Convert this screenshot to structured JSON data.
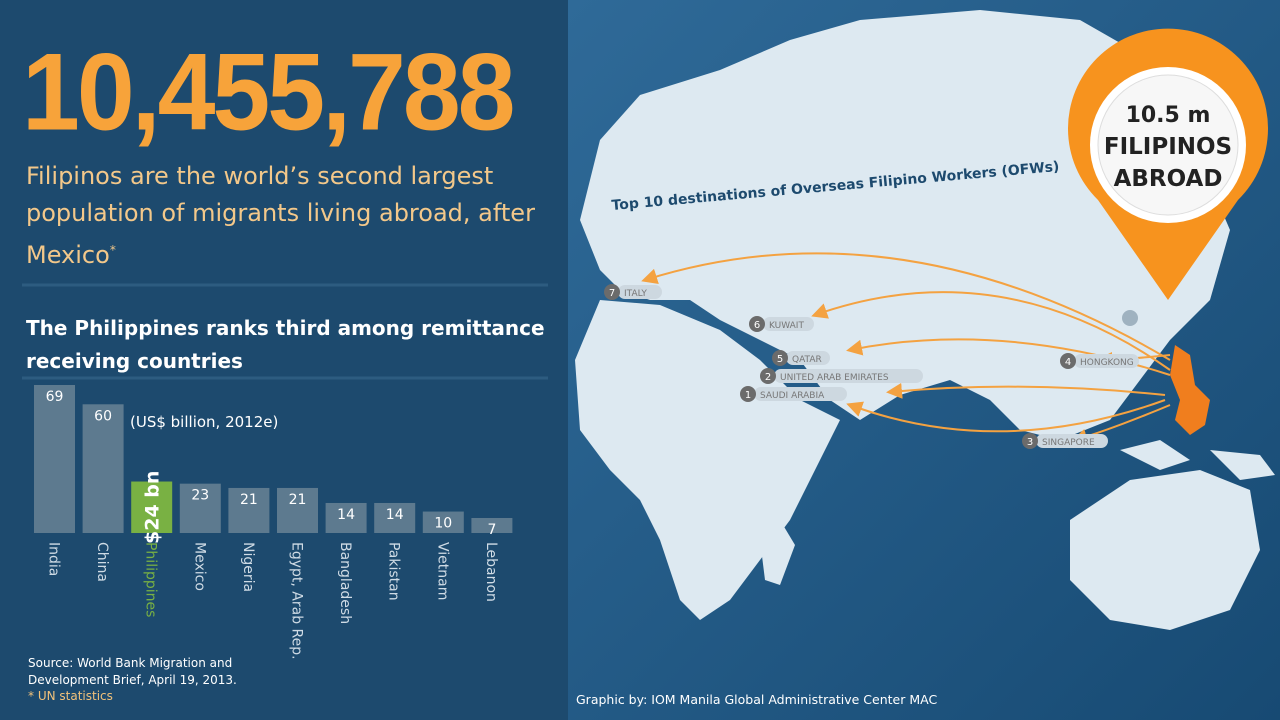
{
  "headline": "10,455,788",
  "subtitle": "Filipinos are the world’s second largest population of migrants living abroad, after Mexico",
  "subtitle_mark": "*",
  "source": "Source: World Bank Migration and Development Brief, April 19, 2013.",
  "footnote": "* UN statistics",
  "credit": "Graphic by: IOM Manila Global Administrative Center MAC",
  "pin": {
    "lines": [
      "10.5 m",
      "FILIPINOS",
      "ABROAD"
    ]
  },
  "map": {
    "title": "Top 10 destinations of Overseas Filipino Workers (OFWs)",
    "destinations": [
      {
        "rank": 7,
        "name": "ITALY"
      },
      {
        "rank": 6,
        "name": "KUWAIT"
      },
      {
        "rank": 5,
        "name": "QATAR"
      },
      {
        "rank": 2,
        "name": "UNITED ARAB EMIRATES"
      },
      {
        "rank": 1,
        "name": "SAUDI ARABIA"
      },
      {
        "rank": 4,
        "name": "HONGKONG"
      },
      {
        "rank": 3,
        "name": "SINGAPORE"
      }
    ]
  },
  "chart_data": {
    "type": "bar",
    "title": "The Philippines ranks third among remittance receiving countries",
    "unit_note": "(US$ billion, 2012e)",
    "categories": [
      "India",
      "China",
      "Philippines",
      "Mexico",
      "Nigeria",
      "Egypt, Arab Rep.",
      "Bangladesh",
      "Pakistan",
      "Vietnam",
      "Lebanon"
    ],
    "values": [
      69,
      60,
      24,
      23,
      21,
      21,
      14,
      14,
      10,
      7
    ],
    "value_labels": [
      "69",
      "60",
      "$24 bn",
      "23",
      "21",
      "21",
      "14",
      "14",
      "10",
      "7"
    ],
    "colors": [
      "#5d7a8f",
      "#5d7a8f",
      "#79b143",
      "#5d7a8f",
      "#5d7a8f",
      "#5d7a8f",
      "#5d7a8f",
      "#5d7a8f",
      "#5d7a8f",
      "#5d7a8f"
    ],
    "label_colors": [
      "#cfdbe5",
      "#cfdbe5",
      "#79b143",
      "#cfdbe5",
      "#cfdbe5",
      "#cfdbe5",
      "#cfdbe5",
      "#cfdbe5",
      "#cfdbe5",
      "#cfdbe5"
    ]
  }
}
